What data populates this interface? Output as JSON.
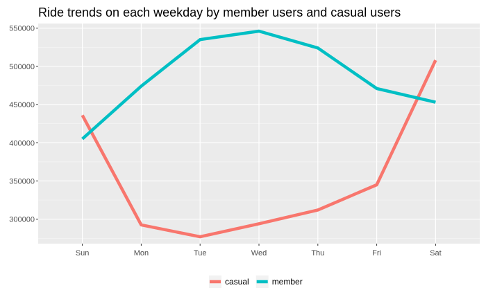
{
  "chart_data": {
    "type": "line",
    "title": "Ride trends on each weekday by member users and casual users",
    "xlabel": "",
    "ylabel": "",
    "categories": [
      "Sun",
      "Mon",
      "Tue",
      "Wed",
      "Thu",
      "Fri",
      "Sat"
    ],
    "ylim": [
      268000,
      556000
    ],
    "yticks": [
      300000,
      350000,
      400000,
      450000,
      500000,
      550000
    ],
    "ytick_labels": [
      "300000",
      "350000",
      "400000",
      "450000",
      "500000",
      "550000"
    ],
    "grid": true,
    "legend_position": "bottom",
    "series": [
      {
        "name": "casual",
        "color": "#F8766D",
        "values": [
          436000,
          292500,
          277000,
          294000,
          312000,
          345000,
          508000
        ]
      },
      {
        "name": "member",
        "color": "#00BFC4",
        "values": [
          405000,
          474000,
          535000,
          546000,
          524000,
          471000,
          453000
        ]
      }
    ]
  }
}
